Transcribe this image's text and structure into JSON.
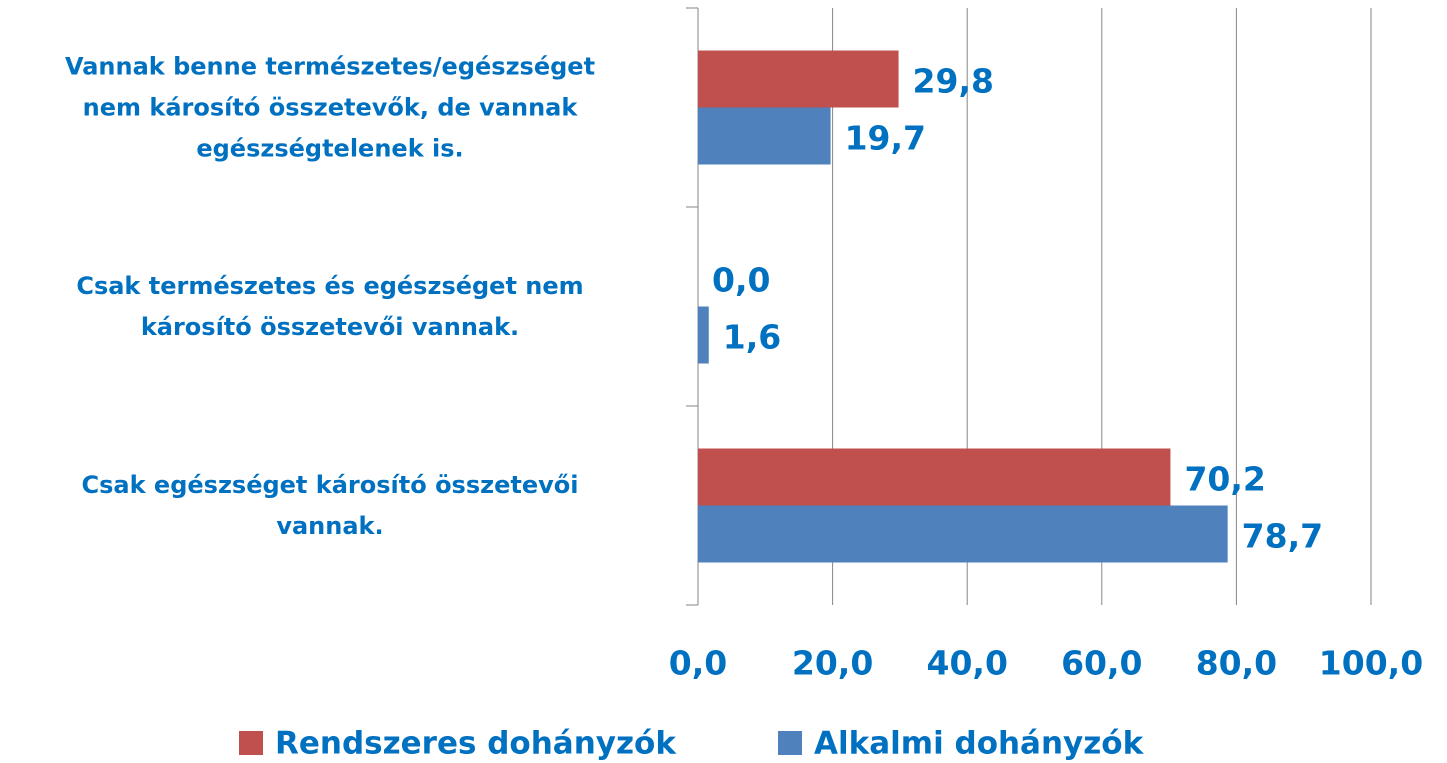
{
  "chart_data": {
    "type": "hbar",
    "categories": [
      "Vannak benne természetes/egészséget\nnem károsító összetevők, de vannak\negészségtelenek is.",
      "Csak természetes és egészséget nem\nkárosító összetevői vannak.",
      "Csak egészséget károsító összetevői\nvannak."
    ],
    "series": [
      {
        "name": "Rendszeres dohányzók",
        "color": "#c0504d",
        "values": [
          29.8,
          0.0,
          70.2
        ],
        "value_labels": [
          "29,8",
          "0,0",
          "70,2"
        ]
      },
      {
        "name": "Alkalmi dohányzók",
        "color": "#4f81bd",
        "values": [
          19.7,
          1.6,
          78.7
        ],
        "value_labels": [
          "19,7",
          "1,6",
          "78,7"
        ]
      }
    ],
    "xlim": [
      0,
      100
    ],
    "xticks": [
      {
        "value": 0,
        "label": "0,0"
      },
      {
        "value": 20,
        "label": "20,0"
      },
      {
        "value": 40,
        "label": "40,0"
      },
      {
        "value": 60,
        "label": "60,0"
      },
      {
        "value": 80,
        "label": "80,0"
      },
      {
        "value": 100,
        "label": "100,0"
      }
    ],
    "grid": true,
    "legend": "bottom"
  }
}
